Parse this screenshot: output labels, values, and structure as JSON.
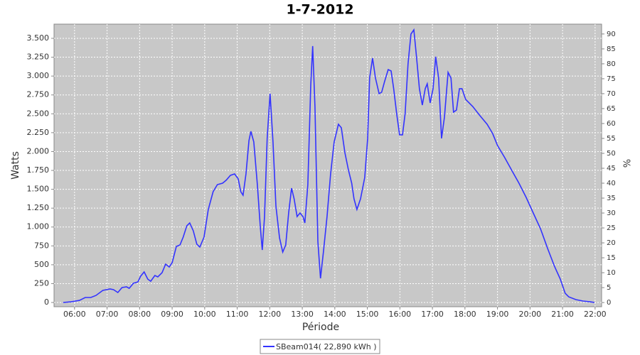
{
  "chart_data": {
    "type": "line",
    "title": "1-7-2012",
    "x_label": "Période",
    "y_label": "Watts",
    "y2_label": "%",
    "x": [
      5.65,
      5.89,
      6.15,
      6.33,
      6.5,
      6.66,
      6.87,
      7.09,
      7.2,
      7.33,
      7.46,
      7.6,
      7.68,
      7.81,
      7.95,
      8.03,
      8.14,
      8.25,
      8.34,
      8.47,
      8.56,
      8.69,
      8.8,
      8.91,
      9.0,
      9.13,
      9.24,
      9.34,
      9.45,
      9.54,
      9.65,
      9.76,
      9.85,
      9.98,
      10.11,
      10.26,
      10.39,
      10.55,
      10.66,
      10.79,
      10.92,
      11.03,
      11.11,
      11.18,
      11.27,
      11.36,
      11.42,
      11.51,
      11.62,
      11.71,
      11.77,
      11.84,
      11.92,
      12.01,
      12.1,
      12.19,
      12.3,
      12.4,
      12.49,
      12.58,
      12.67,
      12.75,
      12.84,
      12.93,
      13.02,
      13.08,
      13.17,
      13.26,
      13.32,
      13.39,
      13.48,
      13.56,
      13.65,
      13.76,
      13.87,
      13.98,
      14.11,
      14.2,
      14.31,
      14.42,
      14.52,
      14.59,
      14.68,
      14.79,
      14.92,
      15.01,
      15.07,
      15.16,
      15.25,
      15.36,
      15.44,
      15.53,
      15.64,
      15.73,
      15.81,
      15.9,
      15.99,
      16.08,
      16.16,
      16.25,
      16.34,
      16.43,
      16.51,
      16.6,
      16.69,
      16.78,
      16.84,
      16.93,
      17.02,
      17.1,
      17.19,
      17.28,
      17.37,
      17.48,
      17.57,
      17.65,
      17.74,
      17.83,
      17.91,
      18.02,
      18.24,
      18.46,
      18.68,
      18.85,
      19.0,
      19.22,
      19.44,
      19.66,
      19.88,
      20.1,
      20.32,
      20.54,
      20.75,
      20.93,
      21.08,
      21.19,
      21.41,
      21.63,
      21.85,
      21.98
    ],
    "series": [
      {
        "name": "SBeam014( 22,890 kWh )",
        "color": "#3333ff",
        "values": [
          0,
          9,
          28,
          66,
          66,
          94,
          160,
          179,
          170,
          132,
          198,
          207,
          188,
          254,
          273,
          348,
          405,
          310,
          282,
          358,
          339,
          395,
          508,
          470,
          527,
          743,
          762,
          866,
          1016,
          1054,
          950,
          772,
          734,
          866,
          1233,
          1468,
          1562,
          1581,
          1619,
          1684,
          1703,
          1637,
          1468,
          1421,
          1703,
          2145,
          2268,
          2127,
          1562,
          997,
          696,
          1139,
          2174,
          2767,
          2127,
          1280,
          856,
          668,
          762,
          1186,
          1515,
          1374,
          1139,
          1186,
          1139,
          1054,
          1562,
          2880,
          3397,
          2598,
          809,
          320,
          668,
          1139,
          1703,
          2127,
          2362,
          2315,
          1985,
          1750,
          1581,
          1374,
          1233,
          1374,
          1656,
          2174,
          2974,
          3237,
          2974,
          2767,
          2786,
          2927,
          3086,
          3068,
          2833,
          2503,
          2221,
          2221,
          2503,
          3162,
          3557,
          3613,
          3256,
          2833,
          2616,
          2833,
          2898,
          2644,
          2833,
          3256,
          2974,
          2174,
          2456,
          3049,
          2974,
          2522,
          2550,
          2833,
          2833,
          2691,
          2597,
          2475,
          2362,
          2240,
          2080,
          1920,
          1750,
          1581,
          1393,
          1186,
          979,
          715,
          480,
          310,
          122,
          75,
          38,
          19,
          9,
          0
        ]
      }
    ],
    "xlim": [
      5.37,
      22.2
    ],
    "xticks": [
      {
        "value": 6,
        "label": "06:00"
      },
      {
        "value": 7,
        "label": "07:00"
      },
      {
        "value": 8,
        "label": "08:00"
      },
      {
        "value": 9,
        "label": "09:00"
      },
      {
        "value": 10,
        "label": "10:00"
      },
      {
        "value": 11,
        "label": "11:00"
      },
      {
        "value": 12,
        "label": "12:00"
      },
      {
        "value": 13,
        "label": "13:00"
      },
      {
        "value": 14,
        "label": "14:00"
      },
      {
        "value": 15,
        "label": "15:00"
      },
      {
        "value": 16,
        "label": "16:00"
      },
      {
        "value": 17,
        "label": "17:00"
      },
      {
        "value": 18,
        "label": "18:00"
      },
      {
        "value": 19,
        "label": "19:00"
      },
      {
        "value": 20,
        "label": "20:00"
      },
      {
        "value": 21,
        "label": "21:00"
      },
      {
        "value": 22,
        "label": "22:00"
      }
    ],
    "ylim": [
      -56,
      3688
    ],
    "yticks": [
      0,
      250,
      500,
      750,
      {
        "value": 1000,
        "label": "1.000"
      },
      {
        "value": 1250,
        "label": "1.250"
      },
      {
        "value": 1500,
        "label": "1.500"
      },
      {
        "value": 1750,
        "label": "1.750"
      },
      {
        "value": 2000,
        "label": "2.000"
      },
      {
        "value": 2250,
        "label": "2.250"
      },
      {
        "value": 2500,
        "label": "2.500"
      },
      {
        "value": 2750,
        "label": "2.750"
      },
      {
        "value": 3000,
        "label": "3.000"
      },
      {
        "value": 3250,
        "label": "3.250"
      },
      {
        "value": 3500,
        "label": "3.500"
      }
    ],
    "y2lim": [
      -1.4,
      93.3
    ],
    "y2ticks": [
      0,
      5,
      10,
      15,
      20,
      25,
      30,
      35,
      40,
      45,
      50,
      55,
      60,
      65,
      70,
      75,
      80,
      85,
      90
    ],
    "grid": true
  }
}
